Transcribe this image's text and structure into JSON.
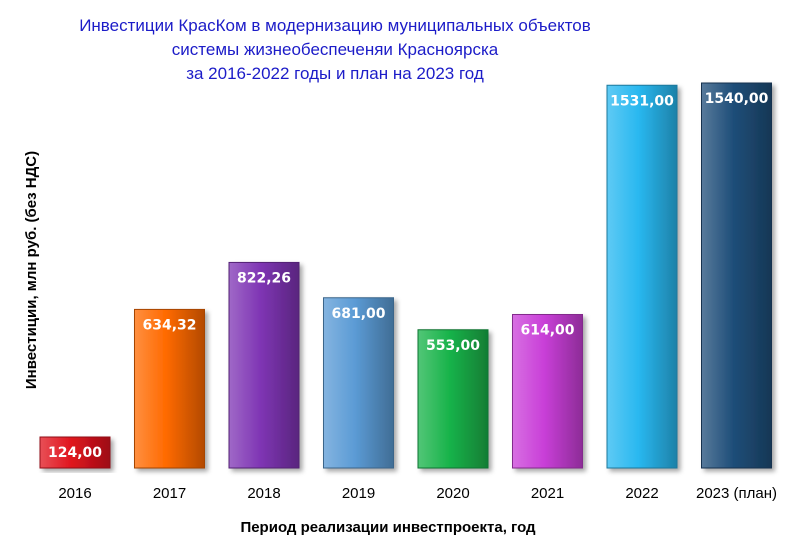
{
  "chart_data": {
    "type": "bar",
    "title": [
      "Инвестиции КрасКом в модернизацию  муниципальных объектов",
      "системы жизнеобеспеченяи Красноярска",
      "за 2016-2022 годы и план на 2023 год"
    ],
    "xlabel": "Период реализации инвестпроекта, год",
    "ylabel": "Инвестиции, млн руб. (без НДС)",
    "categories": [
      "2016",
      "2017",
      "2018",
      "2019",
      "2020",
      "2021",
      "2022",
      "2023 (план)"
    ],
    "values": [
      124.0,
      634.32,
      822.26,
      681.0,
      553.0,
      614.0,
      1531.0,
      1540.0
    ],
    "value_labels": [
      "124,00",
      "634,32",
      "822,26",
      "681,00",
      "553,00",
      "614,00",
      "1531,00",
      "1540,00"
    ],
    "colors": [
      "#e0141e",
      "#ff6a00",
      "#7f35b4",
      "#5b9bd5",
      "#18b34a",
      "#c93fd8",
      "#29b8f0",
      "#1f4e79"
    ],
    "ylim": [
      0,
      1560
    ],
    "grid": false,
    "legend": "none"
  }
}
